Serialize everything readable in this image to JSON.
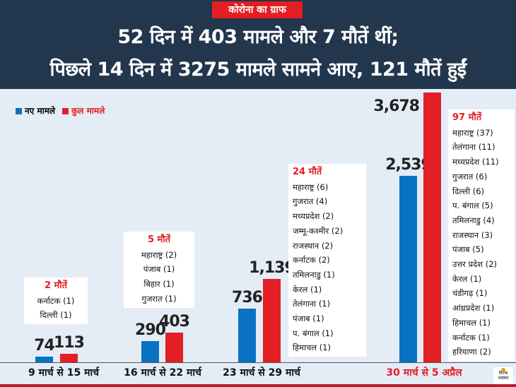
{
  "header": {
    "tag": "कोरोना का ग्राफ",
    "line1": "52 दिन में 403 मामले और 7 मौतें थीं;",
    "line2": "पिछले 14 दिन में 3275 मामले सामने आए, 121 मौतें हुईं"
  },
  "colors": {
    "new": "#0a72c2",
    "total": "#e31e24",
    "header": "#22364d"
  },
  "chart_data": {
    "type": "bar",
    "categories": [
      "9 मार्च से 15 मार्च",
      "16 मार्च से 22 मार्च",
      "23 मार्च से 29 मार्च",
      "30 मार्च से 5 अप्रैल"
    ],
    "series": [
      {
        "name": "नए मामले",
        "values": [
          74,
          290,
          736,
          2539
        ],
        "labels": [
          "74",
          "290",
          "736",
          "2,539"
        ]
      },
      {
        "name": "कुल मामले",
        "values": [
          113,
          403,
          1139,
          3678
        ],
        "labels": [
          "113",
          "403",
          "1,139",
          "3,678"
        ]
      }
    ],
    "legend": "top-left",
    "annotations": [
      {
        "title": "2 मौतें",
        "items": [
          "कर्नाटक (1)",
          "दिल्ली (1)"
        ]
      },
      {
        "title": "5 मौतें",
        "items": [
          "महाराष्ट्र (2)",
          "पंजाब (1)",
          "बिहार (1)",
          "गुजरात (1)"
        ]
      },
      {
        "title": "24 मौतें",
        "items": [
          "महाराष्ट्र (6)",
          "गुजरात (4)",
          "मध्यप्रदेश (2)",
          "जम्मू-कश्मीर (2)",
          "राजस्थान (2)",
          "कर्नाटक (2)",
          "तमिलनाडु (1)",
          "केरल (1)",
          "तेलंगाना (1)",
          "पंजाब (1)",
          "प. बंगाल (1)",
          "हिमाचल (1)"
        ]
      },
      {
        "title": "97 मौतें",
        "items": [
          "महाराष्ट्र (37)",
          "तेलंगाना (11)",
          "मध्यप्रदेश (11)",
          "गुजरात (6)",
          "दिल्ली (6)",
          "प. बंगाल (5)",
          "तमिलनाडु (4)",
          "राजस्थान (3)",
          "पंजाब (5)",
          "उत्तर प्रदेश (2)",
          "केरल (1)",
          "चंडीगढ़ (1)",
          "आंध्रप्रदेश (1)",
          "हिमाचल (1)",
          "कर्नाटक (1)",
          "हरियाणा (2)"
        ]
      }
    ]
  },
  "logo": {
    "text": "दैनिक भास्कर"
  }
}
